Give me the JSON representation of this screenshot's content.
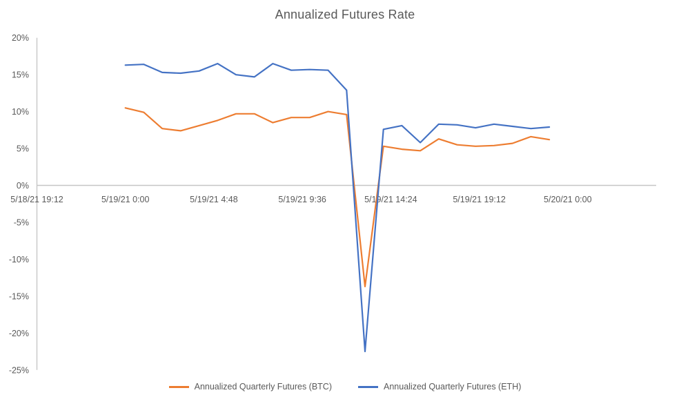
{
  "chart_data": {
    "type": "line",
    "title": "Annualized Futures Rate",
    "legend_position": "bottom",
    "grid": "off",
    "x_axis": {
      "tick_labels": [
        "5/18/21 19:12",
        "5/19/21 0:00",
        "5/19/21 4:48",
        "5/19/21 9:36",
        "5/19/21 14:24",
        "5/19/21 19:12",
        "5/20/21 0:00"
      ],
      "tick_hours": [
        0,
        4.8,
        9.6,
        14.4,
        19.2,
        24,
        28.8
      ],
      "axis_span_hours": [
        0,
        33.6
      ],
      "axis_start_time": "5/18/21 19:12"
    },
    "y_axis": {
      "unit": "%",
      "ylim": [
        -25,
        20
      ],
      "tick_labels": [
        "20%",
        "15%",
        "10%",
        "5%",
        "0%",
        "-5%",
        "-10%",
        "-15%",
        "-20%",
        "-25%"
      ],
      "tick_values": [
        20,
        15,
        10,
        5,
        0,
        -5,
        -10,
        -15,
        -20,
        -25
      ]
    },
    "point_times": [
      "5/19/21 0:00",
      "5/19/21 1:00",
      "5/19/21 2:00",
      "5/19/21 3:00",
      "5/19/21 4:00",
      "5/19/21 5:00",
      "5/19/21 6:00",
      "5/19/21 7:00",
      "5/19/21 8:00",
      "5/19/21 9:00",
      "5/19/21 10:00",
      "5/19/21 11:00",
      "5/19/21 12:00",
      "5/19/21 13:00",
      "5/19/21 14:00",
      "5/19/21 15:00",
      "5/19/21 16:00",
      "5/19/21 17:00",
      "5/19/21 18:00",
      "5/19/21 19:00",
      "5/19/21 20:00",
      "5/19/21 21:00",
      "5/19/21 22:00",
      "5/19/21 23:00"
    ],
    "point_hours": [
      4.8,
      5.8,
      6.8,
      7.8,
      8.8,
      9.8,
      10.8,
      11.8,
      12.8,
      13.8,
      14.8,
      15.8,
      16.8,
      17.8,
      18.8,
      19.8,
      20.8,
      21.8,
      22.8,
      23.8,
      24.8,
      25.8,
      26.8,
      27.8
    ],
    "series": [
      {
        "name": "Annualized Quarterly Futures (BTC)",
        "color": "#ED7D31",
        "values": [
          10.5,
          9.9,
          7.7,
          7.4,
          8.1,
          8.8,
          9.7,
          9.7,
          8.5,
          9.2,
          9.2,
          10.0,
          9.6,
          -13.7,
          5.3,
          4.9,
          4.7,
          6.3,
          5.5,
          5.3,
          5.4,
          5.7,
          6.6,
          6.2
        ]
      },
      {
        "name": "Annualized Quarterly Futures (ETH)",
        "color": "#4472C4",
        "values": [
          16.3,
          16.4,
          15.3,
          15.2,
          15.5,
          16.5,
          15.0,
          14.7,
          16.5,
          15.6,
          15.7,
          15.6,
          12.9,
          -22.5,
          7.6,
          8.1,
          5.8,
          8.3,
          8.2,
          7.8,
          8.3,
          8.0,
          7.7,
          7.9
        ]
      }
    ],
    "colors": {
      "text": "#595959",
      "axis_line": "#C6C6C6",
      "background": "#FFFFFF"
    }
  }
}
